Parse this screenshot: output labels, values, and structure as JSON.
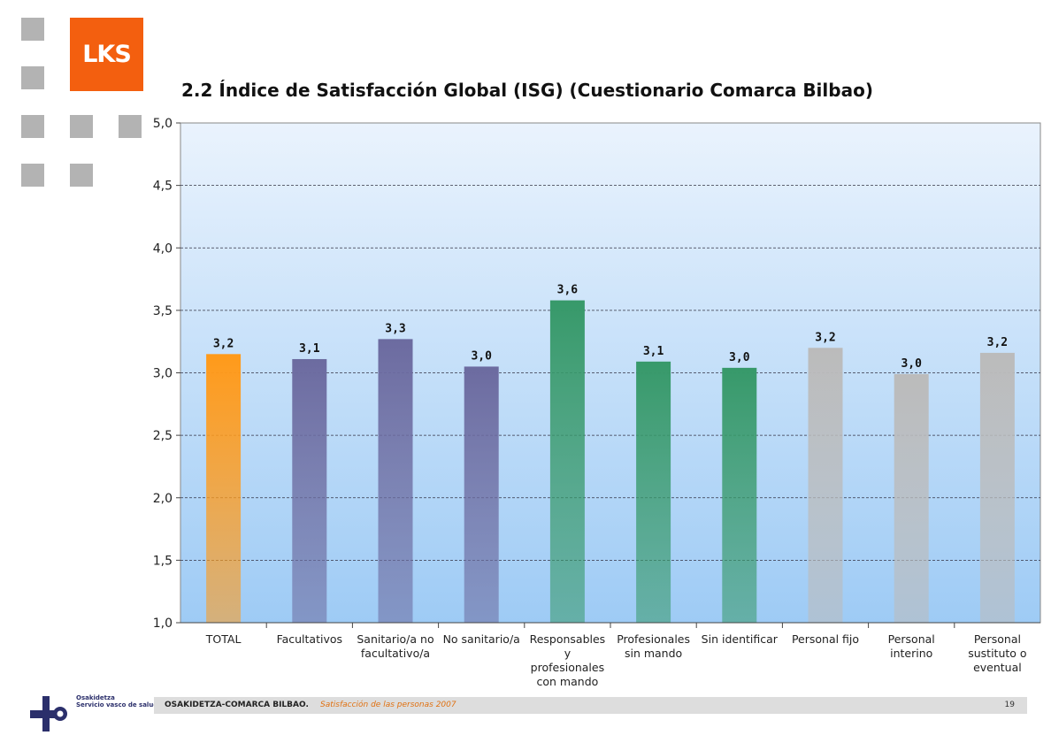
{
  "header": {
    "logo_text": "LKS",
    "title": "2.2 Índice de Satisfacción Global (ISG) (Cuestionario Comarca Bilbao)"
  },
  "chart_data": {
    "type": "bar",
    "title": "2.2 Índice de Satisfacción Global (ISG) (Cuestionario Comarca Bilbao)",
    "xlabel": "",
    "ylabel": "",
    "ylim": [
      1.0,
      5.0
    ],
    "yticks": [
      "1,0",
      "1,5",
      "2,0",
      "2,5",
      "3,0",
      "3,5",
      "4,0",
      "4,5",
      "5,0"
    ],
    "grid": true,
    "categories": [
      [
        "TOTAL"
      ],
      [
        "Facultativos"
      ],
      [
        "Sanitario/a no",
        "facultativo/a"
      ],
      [
        "No sanitario/a"
      ],
      [
        "Responsables",
        "y",
        "profesionales",
        "con mando"
      ],
      [
        "Profesionales",
        "sin mando"
      ],
      [
        "Sin identificar"
      ],
      [
        "Personal fijo"
      ],
      [
        "Personal",
        "interino"
      ],
      [
        "Personal",
        "sustituto o",
        "eventual"
      ]
    ],
    "values": [
      3.15,
      3.11,
      3.27,
      3.05,
      3.58,
      3.09,
      3.04,
      3.2,
      2.99,
      3.16
    ],
    "data_labels": [
      "3,2",
      "3,1",
      "3,3",
      "3,0",
      "3,6",
      "3,1",
      "3,0",
      "3,2",
      "3,0",
      "3,2"
    ],
    "bar_colors": [
      "#ff9a1a",
      "#6c6ba0",
      "#6c6ba0",
      "#6c6ba0",
      "#37996a",
      "#37996a",
      "#37996a",
      "#bbbbbb",
      "#bbbbbb",
      "#bbbbbb"
    ]
  },
  "footer": {
    "org": "OSAKIDETZA-COMARCA BILBAO.",
    "subtitle": "Satisfacción de las personas 2007",
    "page": "19",
    "logo_line1": "Osakidetza",
    "logo_line2": "Servicio vasco de salud"
  }
}
